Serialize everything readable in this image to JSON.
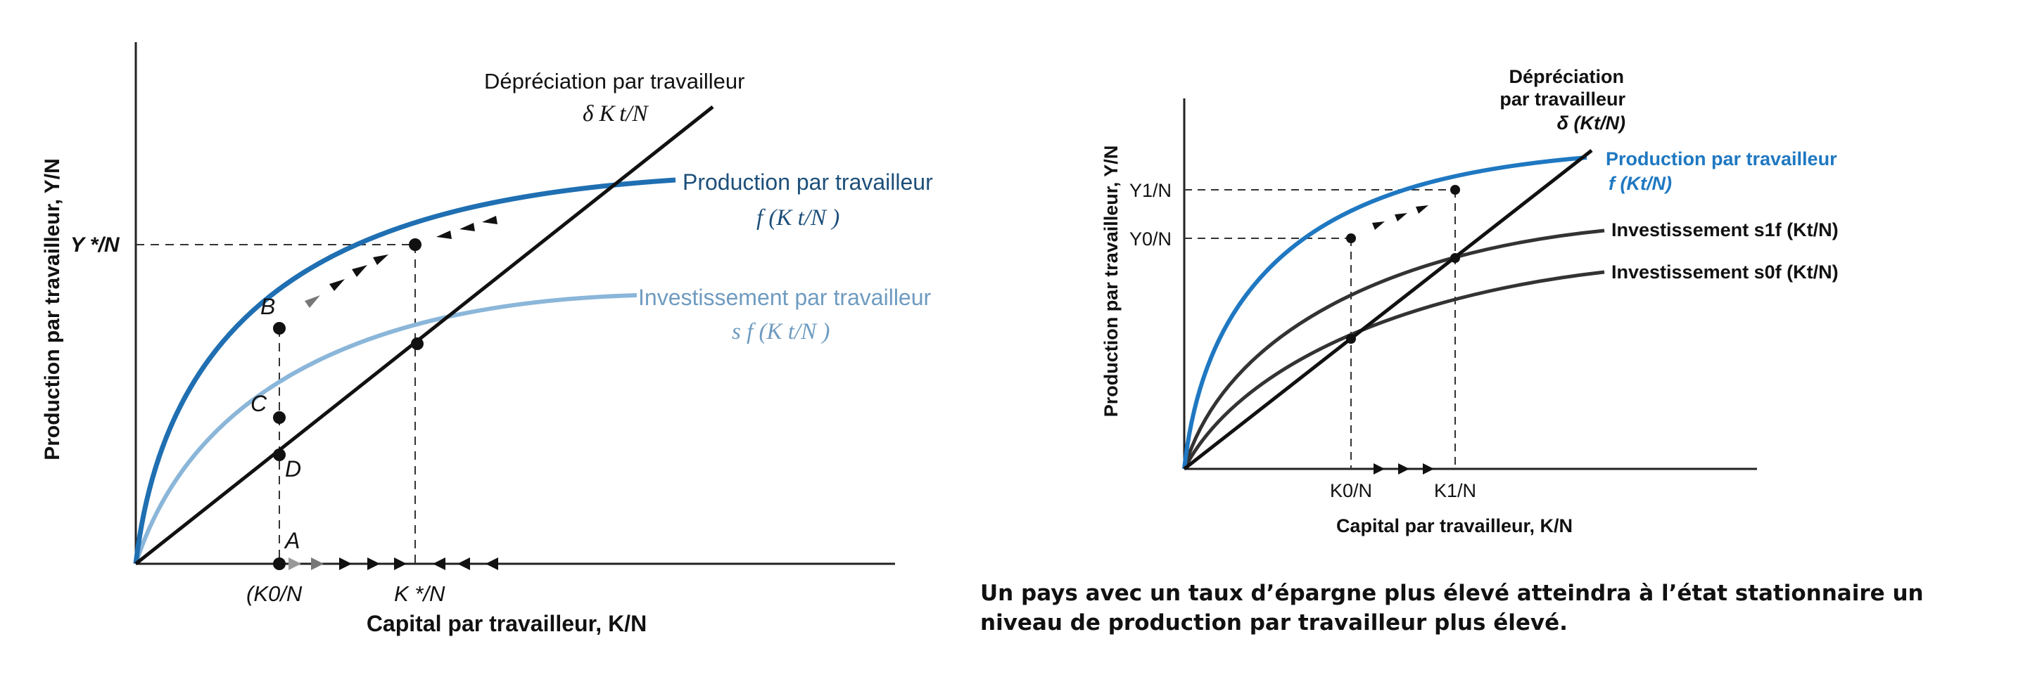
{
  "left": {
    "y_axis_label": "Production par travailleur, Y/N",
    "x_axis_label": "Capital par travailleur, K/N",
    "depreciation_title": "Dépréciation par travailleur",
    "depreciation_formula": "δ K t/N",
    "production_title": "Production par travailleur",
    "production_formula": "f (K t/N )",
    "investment_title": "Investissement par travailleur",
    "investment_formula": "s f (K t/N )",
    "y_star_label": "Y */N",
    "k0_label": "(K0/N",
    "k_star_label": "K */N",
    "point_labels": [
      "A",
      "B",
      "C",
      "D"
    ],
    "colors": {
      "production": "#1f6fb2",
      "investment": "#8ab6d9",
      "depreciation": "#111111"
    }
  },
  "right": {
    "y_axis_label": "Production par travailleur, Y/N",
    "x_axis_label": "Capital par travailleur, K/N",
    "depreciation_line1": "Dépréciation",
    "depreciation_line2": "par travailleur",
    "depreciation_formula": "δ (Kt/N)",
    "production_title": "Production par travailleur",
    "production_formula": "f (Kt/N)",
    "investment_s1": "Investissement s1f (Kt/N)",
    "investment_s0": "Investissement s0f (Kt/N)",
    "y1_label": "Y1/N",
    "y0_label": "Y0/N",
    "k0_label": "K0/N",
    "k1_label": "K1/N",
    "colors": {
      "production": "#1f78c1",
      "investment": "#333333",
      "depreciation": "#111111"
    }
  },
  "caption": "Un pays avec un taux d’épargne plus élevé atteindra à l’état stationnaire un niveau de production par travailleur plus élevé."
}
